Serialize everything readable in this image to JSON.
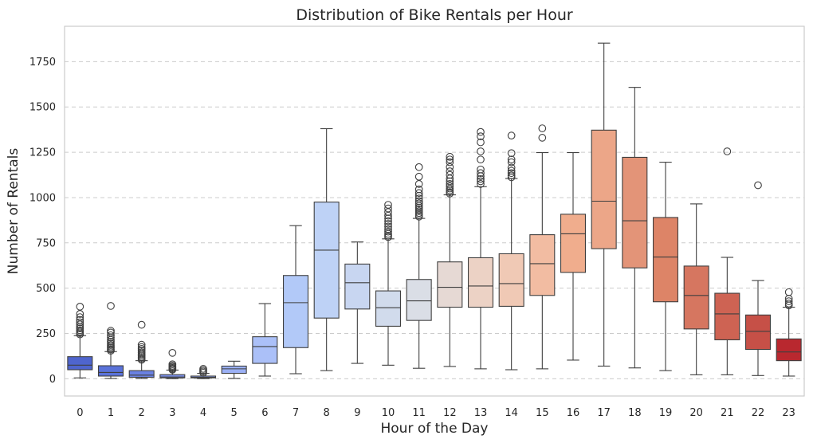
{
  "chart_data": {
    "type": "box",
    "title": "Distribution of Bike Rentals per Hour",
    "xlabel": "Hour of the Day",
    "ylabel": "Number of Rentals",
    "ylim": [
      -95,
      1945
    ],
    "yticks": [
      "0",
      "250",
      "500",
      "750",
      "1000",
      "1250",
      "1500",
      "1750"
    ],
    "grid": "horizontal-dashed",
    "legend": "none",
    "categories": [
      "0",
      "1",
      "2",
      "3",
      "4",
      "5",
      "6",
      "7",
      "8",
      "9",
      "10",
      "11",
      "12",
      "13",
      "14",
      "15",
      "16",
      "17",
      "18",
      "19",
      "20",
      "21",
      "22",
      "23"
    ],
    "colors": [
      "#4f65ce",
      "#5a72d9",
      "#6a81e2",
      "#7a90ea",
      "#8a9ff0",
      "#9bb0f5",
      "#abc0f8",
      "#b2c9f8",
      "#bed2f6",
      "#c8d6f1",
      "#d1dbec",
      "#dadee6",
      "#e6d9d4",
      "#ecd2c5",
      "#f0c9b5",
      "#f2bca2",
      "#f0ad8d",
      "#eca688",
      "#e39478",
      "#dd8467",
      "#d67660",
      "#ce6353",
      "#c65047",
      "#b9282f"
    ],
    "boxes": [
      {
        "whisker_low": 5,
        "q1": 50,
        "median": 75,
        "q3": 122,
        "whisker_high": 238,
        "fliers": [
          245,
          252,
          260,
          268,
          278,
          288,
          300,
          312,
          325,
          340,
          358,
          398
        ]
      },
      {
        "whisker_low": 2,
        "q1": 15,
        "median": 35,
        "q3": 72,
        "whisker_high": 150,
        "fliers": [
          155,
          162,
          170,
          178,
          186,
          195,
          205,
          215,
          228,
          240,
          255,
          265,
          402
        ]
      },
      {
        "whisker_low": 2,
        "q1": 8,
        "median": 20,
        "q3": 45,
        "whisker_high": 100,
        "fliers": [
          105,
          112,
          120,
          128,
          136,
          145,
          155,
          165,
          175,
          188,
          298
        ]
      },
      {
        "whisker_low": 1,
        "q1": 5,
        "median": 10,
        "q3": 23,
        "whisker_high": 48,
        "fliers": [
          50,
          55,
          60,
          66,
          72,
          80,
          143
        ]
      },
      {
        "whisker_low": 1,
        "q1": 5,
        "median": 8,
        "q3": 15,
        "whisker_high": 30,
        "fliers": [
          33,
          40,
          47,
          55
        ]
      },
      {
        "whisker_low": 2,
        "q1": 30,
        "median": 55,
        "q3": 70,
        "whisker_high": 97,
        "fliers": []
      },
      {
        "whisker_low": 15,
        "q1": 85,
        "median": 178,
        "q3": 232,
        "whisker_high": 415,
        "fliers": []
      },
      {
        "whisker_low": 28,
        "q1": 172,
        "median": 420,
        "q3": 570,
        "whisker_high": 845,
        "fliers": []
      },
      {
        "whisker_low": 45,
        "q1": 335,
        "median": 710,
        "q3": 975,
        "whisker_high": 1380,
        "fliers": []
      },
      {
        "whisker_low": 85,
        "q1": 385,
        "median": 530,
        "q3": 633,
        "whisker_high": 755,
        "fliers": []
      },
      {
        "whisker_low": 75,
        "q1": 290,
        "median": 392,
        "q3": 485,
        "whisker_high": 772,
        "fliers": [
          782,
          790,
          800,
          812,
          825,
          840,
          855,
          870,
          885,
          900,
          920,
          940,
          960
        ]
      },
      {
        "whisker_low": 58,
        "q1": 322,
        "median": 430,
        "q3": 548,
        "whisker_high": 885,
        "fliers": [
          895,
          905,
          915,
          925,
          935,
          945,
          955,
          968,
          980,
          995,
          1010,
          1025,
          1045,
          1075,
          1115,
          1168
        ]
      },
      {
        "whisker_low": 68,
        "q1": 395,
        "median": 505,
        "q3": 645,
        "whisker_high": 1015,
        "fliers": [
          1022,
          1030,
          1040,
          1050,
          1062,
          1075,
          1090,
          1105,
          1125,
          1145,
          1168,
          1195,
          1210,
          1225
        ]
      },
      {
        "whisker_low": 55,
        "q1": 395,
        "median": 512,
        "q3": 668,
        "whisker_high": 1060,
        "fliers": [
          1075,
          1090,
          1102,
          1118,
          1135,
          1155,
          1210,
          1255,
          1305,
          1338,
          1362
        ]
      },
      {
        "whisker_low": 50,
        "q1": 400,
        "median": 525,
        "q3": 690,
        "whisker_high": 1105,
        "fliers": [
          1112,
          1122,
          1135,
          1148,
          1165,
          1195,
          1210,
          1245,
          1342
        ]
      },
      {
        "whisker_low": 55,
        "q1": 460,
        "median": 635,
        "q3": 795,
        "whisker_high": 1248,
        "fliers": [
          1330,
          1382
        ]
      },
      {
        "whisker_low": 103,
        "q1": 587,
        "median": 800,
        "q3": 908,
        "whisker_high": 1248,
        "fliers": []
      },
      {
        "whisker_low": 70,
        "q1": 718,
        "median": 980,
        "q3": 1372,
        "whisker_high": 1852,
        "fliers": []
      },
      {
        "whisker_low": 60,
        "q1": 612,
        "median": 872,
        "q3": 1222,
        "whisker_high": 1608,
        "fliers": []
      },
      {
        "whisker_low": 45,
        "q1": 425,
        "median": 672,
        "q3": 890,
        "whisker_high": 1195,
        "fliers": []
      },
      {
        "whisker_low": 22,
        "q1": 275,
        "median": 460,
        "q3": 622,
        "whisker_high": 965,
        "fliers": []
      },
      {
        "whisker_low": 22,
        "q1": 215,
        "median": 358,
        "q3": 472,
        "whisker_high": 670,
        "fliers": [
          1255
        ]
      },
      {
        "whisker_low": 18,
        "q1": 162,
        "median": 262,
        "q3": 352,
        "whisker_high": 542,
        "fliers": [
          1068
        ]
      },
      {
        "whisker_low": 15,
        "q1": 100,
        "median": 148,
        "q3": 220,
        "whisker_high": 395,
        "fliers": [
          405,
          415,
          428,
          442,
          478
        ]
      }
    ]
  }
}
